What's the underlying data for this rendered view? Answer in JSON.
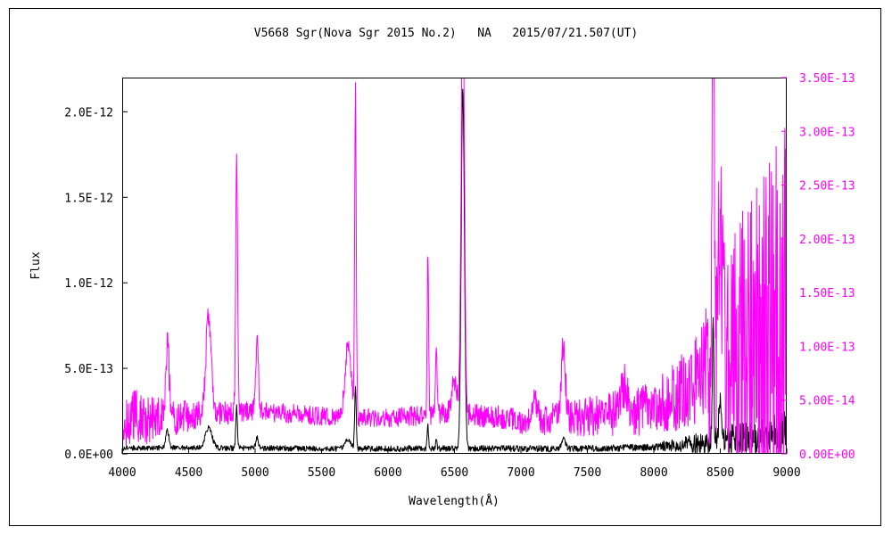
{
  "colors": {
    "background": "#ffffff",
    "frame": "#000000",
    "left_series": "#000000",
    "right_series": "#ff00ff"
  },
  "chart_data": {
    "type": "line",
    "title": "V5668 Sgr(Nova Sgr 2015 No.2)   NA   2015/07/21.507(UT)",
    "xlabel": "Wavelength(Å)",
    "ylabel": "Flux",
    "y2label": "",
    "xlim": [
      4000,
      9000
    ],
    "ylim": [
      0,
      2.2e-12
    ],
    "y2lim": [
      0,
      3.5e-13
    ],
    "x_ticks": [
      4000,
      4500,
      5000,
      5500,
      6000,
      6500,
      7000,
      7500,
      8000,
      8500,
      9000
    ],
    "x_tick_labels": [
      "4000",
      "4500",
      "5000",
      "5500",
      "6000",
      "6500",
      "7000",
      "7500",
      "8000",
      "8500",
      "9000"
    ],
    "y_ticks": [
      0,
      5e-13,
      1e-12,
      1.5e-12,
      2e-12
    ],
    "y_tick_labels": [
      "0.0E+00",
      "5.0E-13",
      "1.0E-12",
      "1.5E-12",
      "2.0E-12"
    ],
    "y2_ticks": [
      0,
      5e-14,
      1e-13,
      1.5e-13,
      2e-13,
      2.5e-13,
      3e-13,
      3.5e-13
    ],
    "y2_tick_labels": [
      "0.00E+00",
      "5.00E-14",
      "1.00E-13",
      "1.50E-13",
      "2.00E-13",
      "2.50E-13",
      "3.00E-13",
      "3.50E-13"
    ],
    "grid": false,
    "series": [
      {
        "axis": "left",
        "color": "#000000",
        "continuum": [
          [
            4000,
            3.5e-14
          ],
          [
            4500,
            3.5e-14
          ],
          [
            5000,
            3.3e-14
          ],
          [
            5500,
            3e-14
          ],
          [
            6000,
            3e-14
          ],
          [
            6500,
            3.2e-14
          ],
          [
            7000,
            3e-14
          ],
          [
            7500,
            3e-14
          ],
          [
            8000,
            4e-14
          ],
          [
            8300,
            6e-14
          ],
          [
            8500,
            8e-14
          ],
          [
            9000,
            1.3e-13
          ]
        ],
        "lines": [
          [
            4340,
            1e-13,
            12
          ],
          [
            4650,
            1.2e-13,
            25
          ],
          [
            4861,
            2.4e-13,
            6
          ],
          [
            5015,
            6e-14,
            10
          ],
          [
            5700,
            6e-14,
            20
          ],
          [
            5755,
            3.5e-13,
            6
          ],
          [
            6300,
            1.3e-13,
            5
          ],
          [
            6364,
            5e-14,
            5
          ],
          [
            6563,
            2.1e-12,
            12
          ],
          [
            7320,
            6e-14,
            15
          ],
          [
            8446,
            6.6e-13,
            6
          ],
          [
            8500,
            2e-13,
            12
          ]
        ],
        "noise": [
          [
            4000,
            1.5e-14
          ],
          [
            8000,
            2e-14
          ],
          [
            8500,
            8e-14
          ],
          [
            9000,
            1.2e-13
          ]
        ]
      },
      {
        "axis": "right",
        "color": "#ff00ff",
        "continuum": [
          [
            4000,
            3.5e-14
          ],
          [
            4200,
            3.2e-14
          ],
          [
            4500,
            3.5e-14
          ],
          [
            4800,
            3.8e-14
          ],
          [
            5000,
            4e-14
          ],
          [
            5500,
            3.5e-14
          ],
          [
            6000,
            3.3e-14
          ],
          [
            6500,
            3.8e-14
          ],
          [
            6800,
            3.5e-14
          ],
          [
            7000,
            3e-14
          ],
          [
            7500,
            3.5e-14
          ],
          [
            8000,
            4.2e-14
          ],
          [
            8300,
            6.5e-14
          ],
          [
            8500,
            8e-14
          ],
          [
            9000,
            1.1e-13
          ]
        ],
        "lines": [
          [
            4340,
            7e-14,
            14
          ],
          [
            4650,
            9e-14,
            20
          ],
          [
            4861,
            2.4e-13,
            7
          ],
          [
            5015,
            6.5e-14,
            10
          ],
          [
            5700,
            7e-14,
            22
          ],
          [
            5755,
            3e-13,
            6
          ],
          [
            6300,
            1.55e-13,
            5
          ],
          [
            6364,
            6e-14,
            6
          ],
          [
            6500,
            3e-14,
            20
          ],
          [
            6563,
            4e-13,
            12
          ],
          [
            7100,
            2e-14,
            20
          ],
          [
            7320,
            7e-14,
            14
          ],
          [
            7780,
            2.5e-14,
            25
          ],
          [
            8446,
            3.3e-13,
            8
          ],
          [
            8500,
            1.5e-13,
            15
          ]
        ],
        "noise": [
          [
            4000,
            3e-14
          ],
          [
            4500,
            1.4e-14
          ],
          [
            5000,
            9e-15
          ],
          [
            6000,
            9e-15
          ],
          [
            7000,
            1.2e-14
          ],
          [
            8000,
            2.5e-14
          ],
          [
            8300,
            4e-14
          ],
          [
            8600,
            1.2e-13
          ],
          [
            9000,
            2.2e-13
          ]
        ]
      }
    ]
  }
}
